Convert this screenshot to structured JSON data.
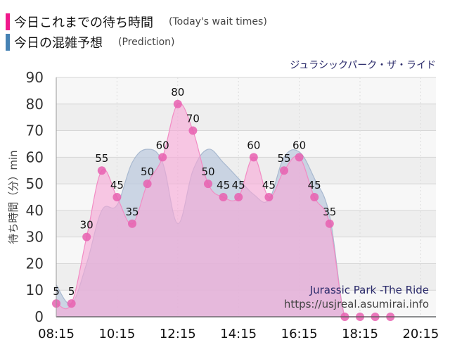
{
  "legend": {
    "today_main": "今日これまでの待ち時間",
    "today_sub": "(Today's wait times)",
    "pred_main": "今日の混雑予想",
    "pred_sub": "(Prediction)"
  },
  "ride_name_jp": "ジュラシックパーク・ザ・ライド",
  "watermark": {
    "line1": "Jurassic Park -The Ride",
    "line2": "https://usjreal.asumirai.info"
  },
  "colors": {
    "today": "#f0198c",
    "today_fill": "#f7a8d6",
    "prediction": "#4682b4",
    "prediction_fill": "#bcc9dd",
    "background": "#f4f4f4"
  },
  "chart_data": {
    "type": "area",
    "ylabel": "待ち時間（分）min",
    "ylim": [
      0,
      90
    ],
    "yticks": [
      0,
      10,
      20,
      30,
      40,
      50,
      60,
      70,
      80,
      90
    ],
    "xlim": [
      "08:15",
      "20:45"
    ],
    "xticks": [
      "08:15",
      "10:15",
      "12:15",
      "14:15",
      "16:15",
      "18:15",
      "20:15"
    ],
    "grid": true,
    "series": [
      {
        "name": "今日これまでの待ち時間",
        "points": [
          {
            "x": "08:15",
            "y": 5
          },
          {
            "x": "08:45",
            "y": 5
          },
          {
            "x": "09:15",
            "y": 30
          },
          {
            "x": "09:45",
            "y": 55
          },
          {
            "x": "10:15",
            "y": 45
          },
          {
            "x": "10:45",
            "y": 35
          },
          {
            "x": "11:15",
            "y": 50
          },
          {
            "x": "11:45",
            "y": 60
          },
          {
            "x": "12:15",
            "y": 80
          },
          {
            "x": "12:45",
            "y": 70
          },
          {
            "x": "13:15",
            "y": 50
          },
          {
            "x": "13:45",
            "y": 45
          },
          {
            "x": "14:15",
            "y": 45
          },
          {
            "x": "14:45",
            "y": 60
          },
          {
            "x": "15:15",
            "y": 45
          },
          {
            "x": "15:45",
            "y": 55
          },
          {
            "x": "16:15",
            "y": 60
          },
          {
            "x": "16:45",
            "y": 45
          },
          {
            "x": "17:15",
            "y": 35
          },
          {
            "x": "17:45",
            "y": 0
          },
          {
            "x": "18:15",
            "y": 0
          },
          {
            "x": "18:45",
            "y": 0
          },
          {
            "x": "19:15",
            "y": 0
          }
        ]
      },
      {
        "name": "今日の混雑予想",
        "points": [
          {
            "x": "08:15",
            "y": 12
          },
          {
            "x": "08:45",
            "y": 5
          },
          {
            "x": "09:15",
            "y": 20
          },
          {
            "x": "09:45",
            "y": 40
          },
          {
            "x": "10:15",
            "y": 42
          },
          {
            "x": "10:45",
            "y": 58
          },
          {
            "x": "11:15",
            "y": 63
          },
          {
            "x": "11:45",
            "y": 58
          },
          {
            "x": "12:15",
            "y": 35
          },
          {
            "x": "12:45",
            "y": 55
          },
          {
            "x": "13:15",
            "y": 63
          },
          {
            "x": "13:45",
            "y": 58
          },
          {
            "x": "14:15",
            "y": 52
          },
          {
            "x": "14:45",
            "y": 46
          },
          {
            "x": "15:15",
            "y": 44
          },
          {
            "x": "15:45",
            "y": 60
          },
          {
            "x": "16:15",
            "y": 62
          },
          {
            "x": "16:45",
            "y": 52
          },
          {
            "x": "17:15",
            "y": 38
          },
          {
            "x": "17:45",
            "y": 0
          },
          {
            "x": "18:15",
            "y": 0
          },
          {
            "x": "20:45",
            "y": 0
          }
        ]
      }
    ]
  }
}
